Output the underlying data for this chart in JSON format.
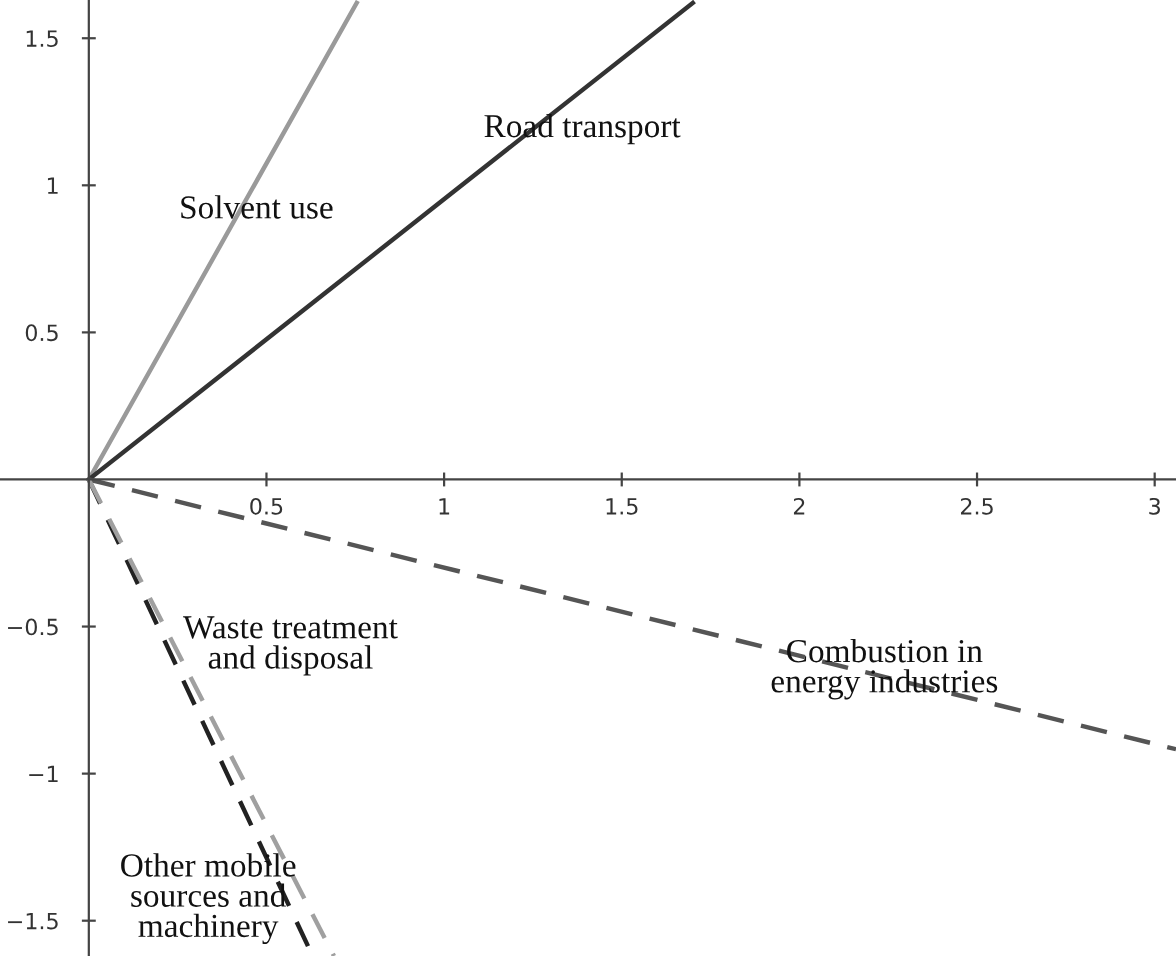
{
  "chart_data": {
    "type": "line",
    "xlim": [
      -0.25,
      3.06
    ],
    "ylim": [
      -1.62,
      1.63
    ],
    "xticks": [
      0.5,
      1,
      1.5,
      2,
      2.5,
      3
    ],
    "yticks": [
      {
        "value": -1.5,
        "label": "−1.5"
      },
      {
        "value": -1,
        "label": "−1"
      },
      {
        "value": -0.5,
        "label": "−0.5"
      },
      0.5,
      1,
      1.5
    ],
    "grid": false,
    "legend": false,
    "marker": "none",
    "series": [
      {
        "name": "Solvent use",
        "color": "#9a9a9a",
        "x": [
          0,
          0.754
        ],
        "values": [
          0,
          1.62
        ],
        "line_style": "solid"
      },
      {
        "name": "Road transport",
        "color": "#333333",
        "x": [
          0,
          1.7
        ],
        "values": [
          0,
          1.62
        ],
        "line_style": "solid"
      },
      {
        "name": "Combustion in\nenergy industries",
        "color": "#555555",
        "x": [
          0,
          3.06
        ],
        "values": [
          0,
          -0.917
        ],
        "line_style": "dashed"
      },
      {
        "name": "Waste treatment\nand disposal",
        "color": "#222222",
        "x": [
          0,
          0.63
        ],
        "values": [
          0,
          -1.62
        ],
        "line_style": "dashed"
      },
      {
        "name": "Other mobile\nsources and\nmachinery",
        "color": "#a0a0a0",
        "x": [
          0,
          0.69
        ],
        "values": [
          0,
          -1.62
        ],
        "line_style": "dashed"
      }
    ]
  }
}
